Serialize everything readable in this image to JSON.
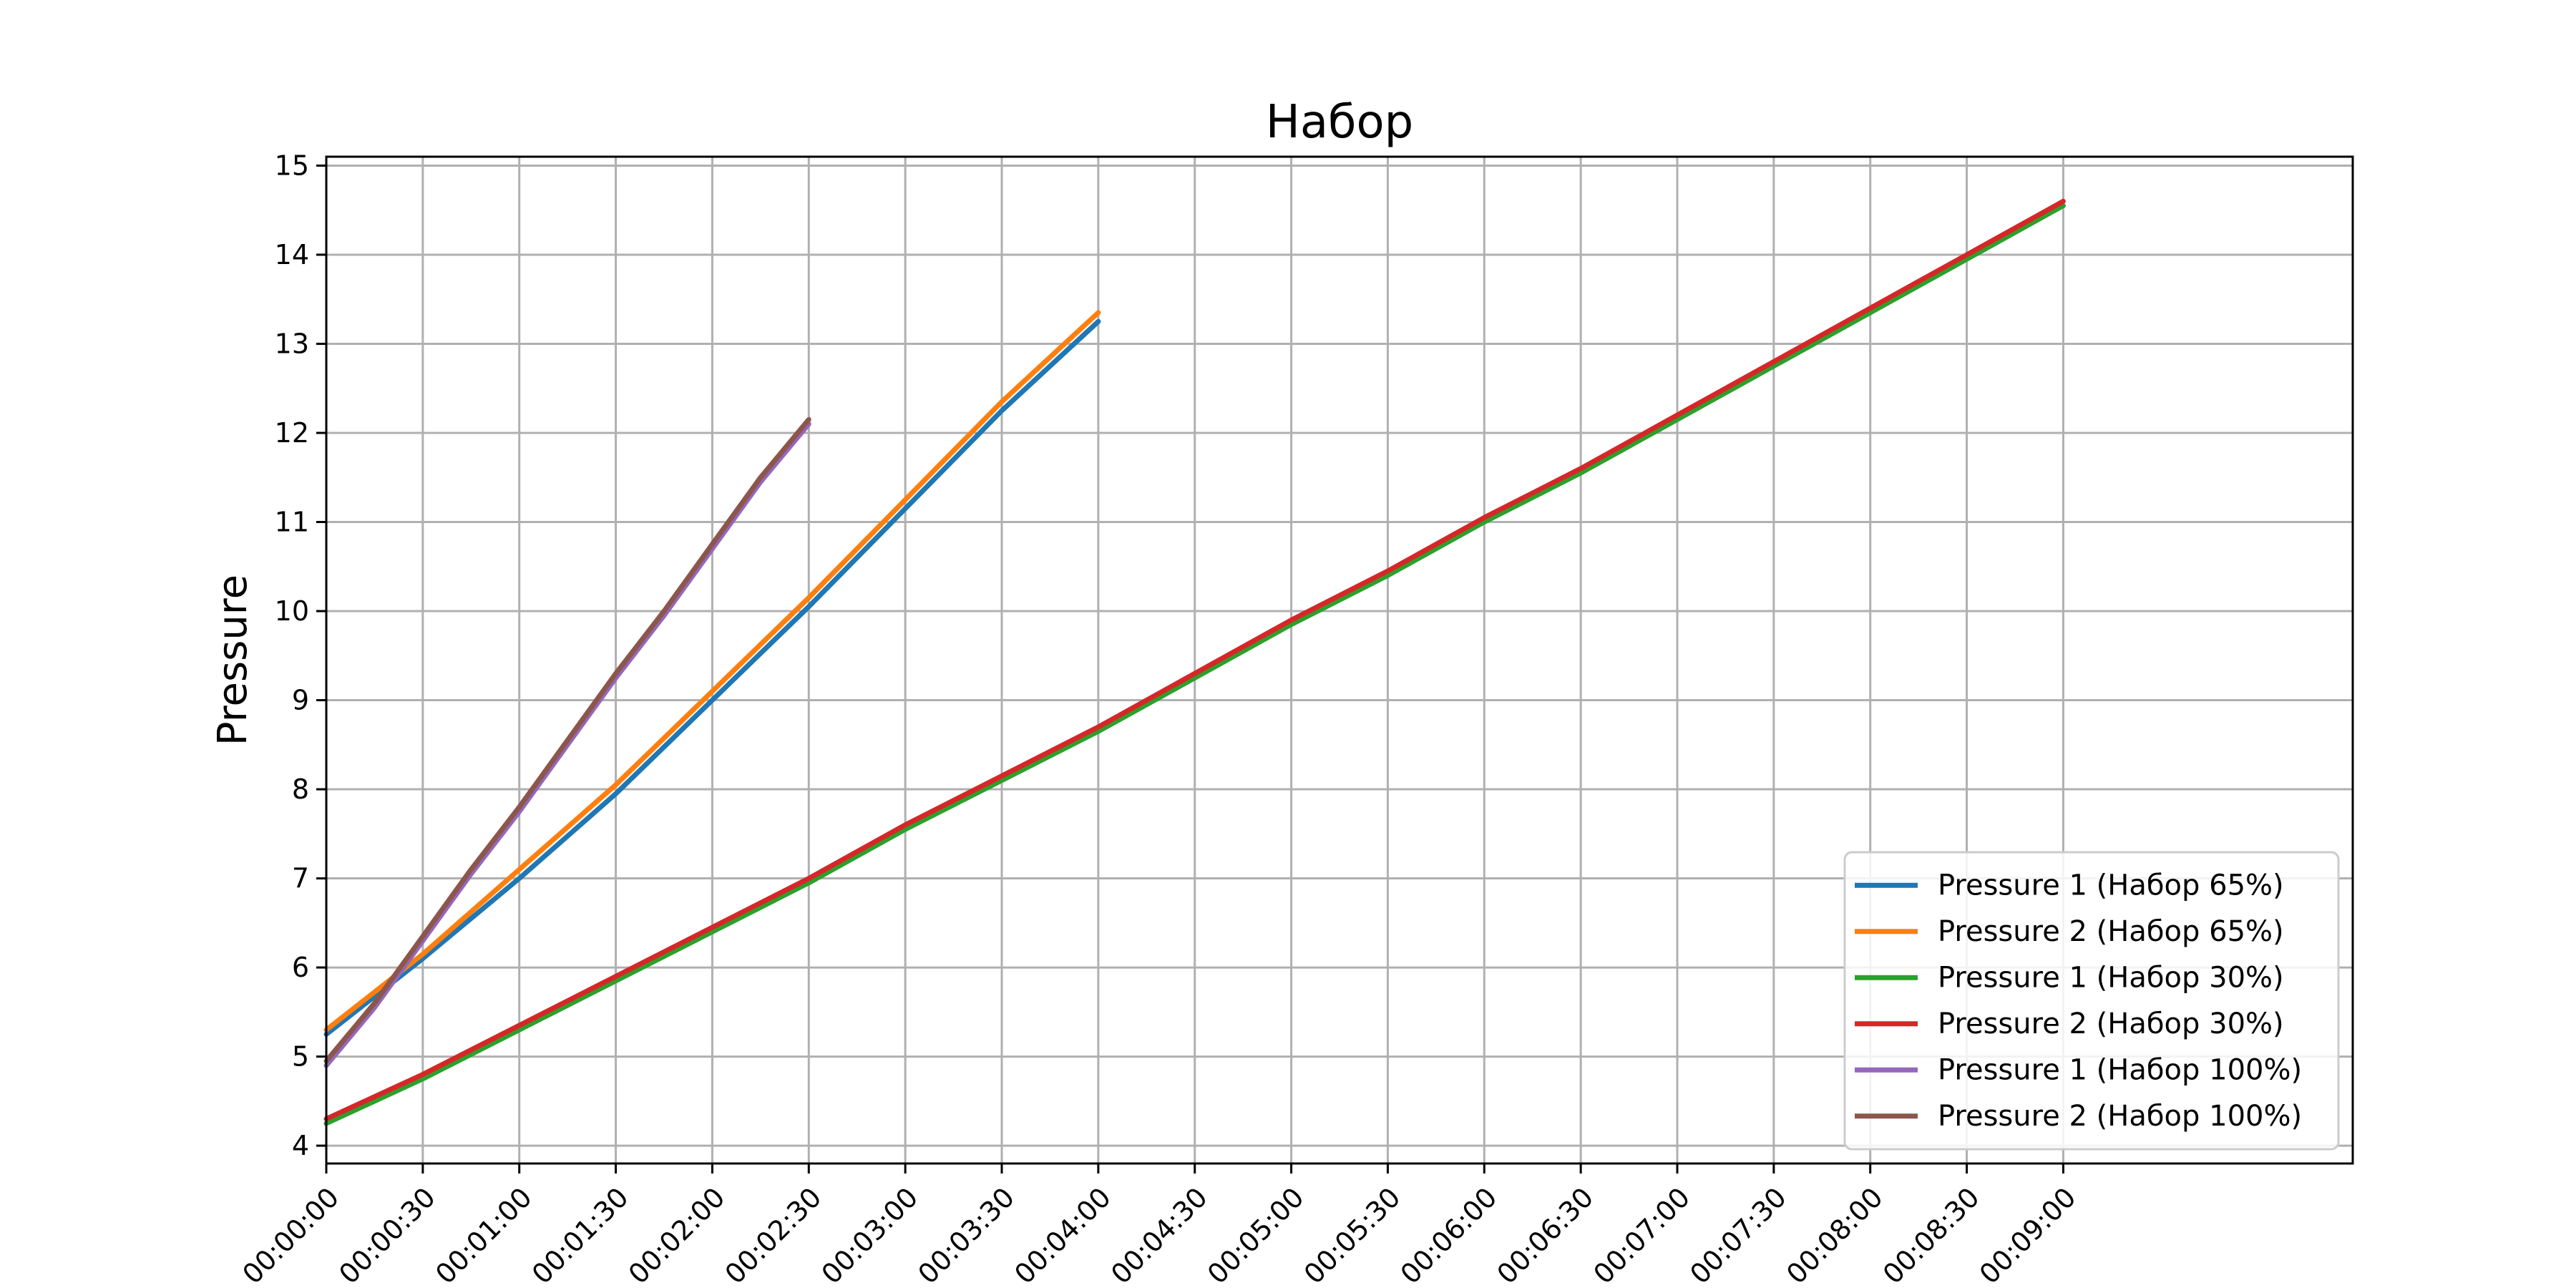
{
  "chart_data": {
    "type": "line",
    "title": "Набор",
    "xlabel": "",
    "ylabel": "Pressure",
    "x_unit": "seconds",
    "xlim": [
      0,
      630
    ],
    "ylim": [
      3.8,
      15.1
    ],
    "x_ticks": [
      {
        "value": 0,
        "label": "00:00:00"
      },
      {
        "value": 30,
        "label": "00:00:30"
      },
      {
        "value": 60,
        "label": "00:01:00"
      },
      {
        "value": 90,
        "label": "00:01:30"
      },
      {
        "value": 120,
        "label": "00:02:00"
      },
      {
        "value": 150,
        "label": "00:02:30"
      },
      {
        "value": 180,
        "label": "00:03:00"
      },
      {
        "value": 210,
        "label": "00:03:30"
      },
      {
        "value": 240,
        "label": "00:04:00"
      },
      {
        "value": 270,
        "label": "00:04:30"
      },
      {
        "value": 300,
        "label": "00:05:00"
      },
      {
        "value": 330,
        "label": "00:05:30"
      },
      {
        "value": 360,
        "label": "00:06:00"
      },
      {
        "value": 390,
        "label": "00:06:30"
      },
      {
        "value": 420,
        "label": "00:07:00"
      },
      {
        "value": 450,
        "label": "00:07:30"
      },
      {
        "value": 480,
        "label": "00:08:00"
      },
      {
        "value": 510,
        "label": "00:08:30"
      },
      {
        "value": 540,
        "label": "00:09:00"
      }
    ],
    "y_ticks": [
      4,
      5,
      6,
      7,
      8,
      9,
      10,
      11,
      12,
      13,
      14,
      15
    ],
    "grid": true,
    "legend_position": "lower-right",
    "series": [
      {
        "name": "Pressure 1 (Набор 65%)",
        "color": "#1f77b4",
        "x": [
          0,
          30,
          60,
          90,
          120,
          150,
          180,
          210,
          240
        ],
        "y": [
          5.25,
          6.1,
          7.0,
          7.95,
          9.0,
          10.05,
          11.15,
          12.25,
          13.25
        ]
      },
      {
        "name": "Pressure 2 (Набор 65%)",
        "color": "#ff7f0e",
        "x": [
          0,
          30,
          60,
          90,
          120,
          150,
          180,
          210,
          240
        ],
        "y": [
          5.3,
          6.15,
          7.1,
          8.05,
          9.1,
          10.15,
          11.25,
          12.35,
          13.35
        ]
      },
      {
        "name": "Pressure 1 (Набор 30%)",
        "color": "#2ca02c",
        "x": [
          0,
          30,
          60,
          90,
          120,
          150,
          180,
          210,
          240,
          270,
          300,
          330,
          360,
          390,
          420,
          450,
          480,
          510,
          540
        ],
        "y": [
          4.25,
          4.75,
          5.3,
          5.85,
          6.4,
          6.95,
          7.55,
          8.1,
          8.65,
          9.25,
          9.85,
          10.4,
          11.0,
          11.55,
          12.15,
          12.75,
          13.35,
          13.95,
          14.55
        ]
      },
      {
        "name": "Pressure 2 (Набор 30%)",
        "color": "#d62728",
        "x": [
          0,
          30,
          60,
          90,
          120,
          150,
          180,
          210,
          240,
          270,
          300,
          330,
          360,
          390,
          420,
          450,
          480,
          510,
          540
        ],
        "y": [
          4.3,
          4.8,
          5.35,
          5.9,
          6.45,
          7.0,
          7.6,
          8.15,
          8.7,
          9.3,
          9.9,
          10.45,
          11.05,
          11.6,
          12.2,
          12.8,
          13.4,
          14.0,
          14.6
        ]
      },
      {
        "name": "Pressure 1 (Набор 100%)",
        "color": "#9467bd",
        "x": [
          0,
          15,
          30,
          45,
          60,
          75,
          90,
          105,
          120,
          135,
          150
        ],
        "y": [
          4.9,
          5.55,
          6.3,
          7.05,
          7.75,
          8.5,
          9.25,
          9.95,
          10.7,
          11.45,
          12.1
        ]
      },
      {
        "name": "Pressure 2 (Набор 100%)",
        "color": "#8c564b",
        "x": [
          0,
          15,
          30,
          45,
          60,
          75,
          90,
          105,
          120,
          135,
          150
        ],
        "y": [
          4.95,
          5.6,
          6.35,
          7.1,
          7.8,
          8.55,
          9.3,
          10.0,
          10.75,
          11.5,
          12.15
        ]
      }
    ]
  }
}
